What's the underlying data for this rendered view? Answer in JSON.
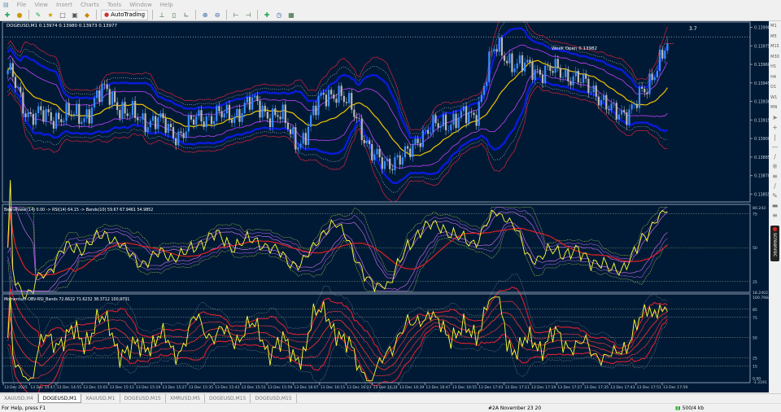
{
  "menu": [
    "File",
    "View",
    "Insert",
    "Charts",
    "Tools",
    "Window",
    "Help"
  ],
  "toolbar": {
    "autotrading_label": "AutoTrading"
  },
  "chart": {
    "header": "DOGEUSD,M1  0.13974 0.13980 0.13973 0.13977",
    "week_open_label": "Week Open 0.13982",
    "week_open_price": 0.13982,
    "shift_label": "3.7",
    "price_axis": [
      "0.13990",
      "0.13975",
      "0.13960",
      "0.13945",
      "0.13930",
      "0.13915",
      "0.13900",
      "0.13885",
      "0.13870",
      "0.13855"
    ],
    "last_close": 0.13977,
    "price_path": [
      0.13952,
      0.13918,
      0.13918,
      0.13918,
      0.13938,
      0.13918,
      0.13914,
      0.13904,
      0.13918,
      0.13918,
      0.13928,
      0.13918,
      0.13898,
      0.13938,
      0.13928,
      0.13884,
      0.13881,
      0.13904,
      0.13914,
      0.13918,
      0.13972,
      0.13958,
      0.13955,
      0.13952,
      0.13938,
      0.13918,
      0.13935,
      0.13977
    ],
    "colors": {
      "background": "#001a35",
      "ma": "#f2c200",
      "band_inner": "#c040ff",
      "band_mid": "#0a1ad8",
      "band_outer": "#c0203a",
      "bull": "#3a8cff",
      "bear": "#b8b8b8"
    }
  },
  "indicator1": {
    "label": "BearsPower(14) 0.00 -> RSI(14) 64.15 -> Bands(10) 59.67  67.9461 54.9852",
    "axis": [
      "80.243",
      "75",
      "50",
      "25",
      "18.2402"
    ]
  },
  "indicator2": {
    "label": "Momentum-OBV-RSI_Bands 72.6622 71.6232 38.3712 100.9731",
    "axis": [
      "100.7984",
      "85",
      "75",
      "50",
      "25",
      "15",
      "0.00",
      "-3.3191"
    ]
  },
  "time_axis": [
    "13 Dec 2025",
    "13 Dec 14:47",
    "13 Dec 14:55",
    "13 Dec 15:03",
    "13 Dec 15:11",
    "13 Dec 15:19",
    "13 Dec 15:27",
    "13 Dec 15:35",
    "13 Dec 15:43",
    "13 Dec 15:51",
    "13 Dec 15:59",
    "13 Dec 16:07",
    "13 Dec 16:15",
    "13 Dec 16:23",
    "13 Dec 16:31",
    "13 Dec 16:39",
    "13 Dec 16:47",
    "13 Dec 16:55",
    "13 Dec 17:03",
    "13 Dec 17:11",
    "13 Dec 17:19",
    "13 Dec 17:27",
    "13 Dec 17:35",
    "13 Dec 17:43",
    "13 Dec 17:51",
    "13 Dec 17:59"
  ],
  "right_toolbar": {
    "timeframes": [
      "M1",
      "M5",
      "M15",
      "M30",
      "H1",
      "H4",
      "D1",
      "W1",
      "MN"
    ],
    "screenrec_label": "screenrec"
  },
  "tabs": [
    {
      "label": "XAUUSD,H4"
    },
    {
      "label": "DOGEUSD,M1",
      "active": true
    },
    {
      "label": "XAUUSD,M1"
    },
    {
      "label": "DOGEUSD,M15"
    },
    {
      "label": "XMRUSD,M5"
    },
    {
      "label": "DOGEUSD,M15"
    },
    {
      "label": "DOGEUSD,M15"
    }
  ],
  "status": {
    "help": "For Help, press F1",
    "profile": "#2A November 23 20",
    "traffic": "500/4 kb"
  }
}
